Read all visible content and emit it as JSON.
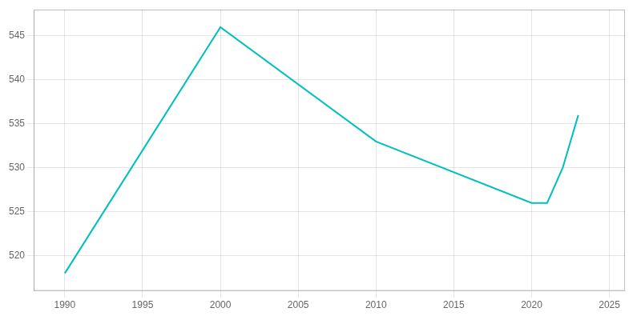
{
  "chart_data": {
    "type": "line",
    "x": [
      1990,
      2000,
      2010,
      2020,
      2021,
      2022,
      2023
    ],
    "values": [
      518,
      546,
      533,
      526,
      526,
      530,
      536
    ],
    "color": "#00BFBF",
    "xlim": [
      1988,
      2026
    ],
    "ylim": [
      516,
      548
    ],
    "xticks": [
      1990,
      1995,
      2000,
      2005,
      2010,
      2015,
      2020,
      2025
    ],
    "yticks": [
      520,
      525,
      530,
      535,
      540,
      545
    ],
    "grid": true
  }
}
